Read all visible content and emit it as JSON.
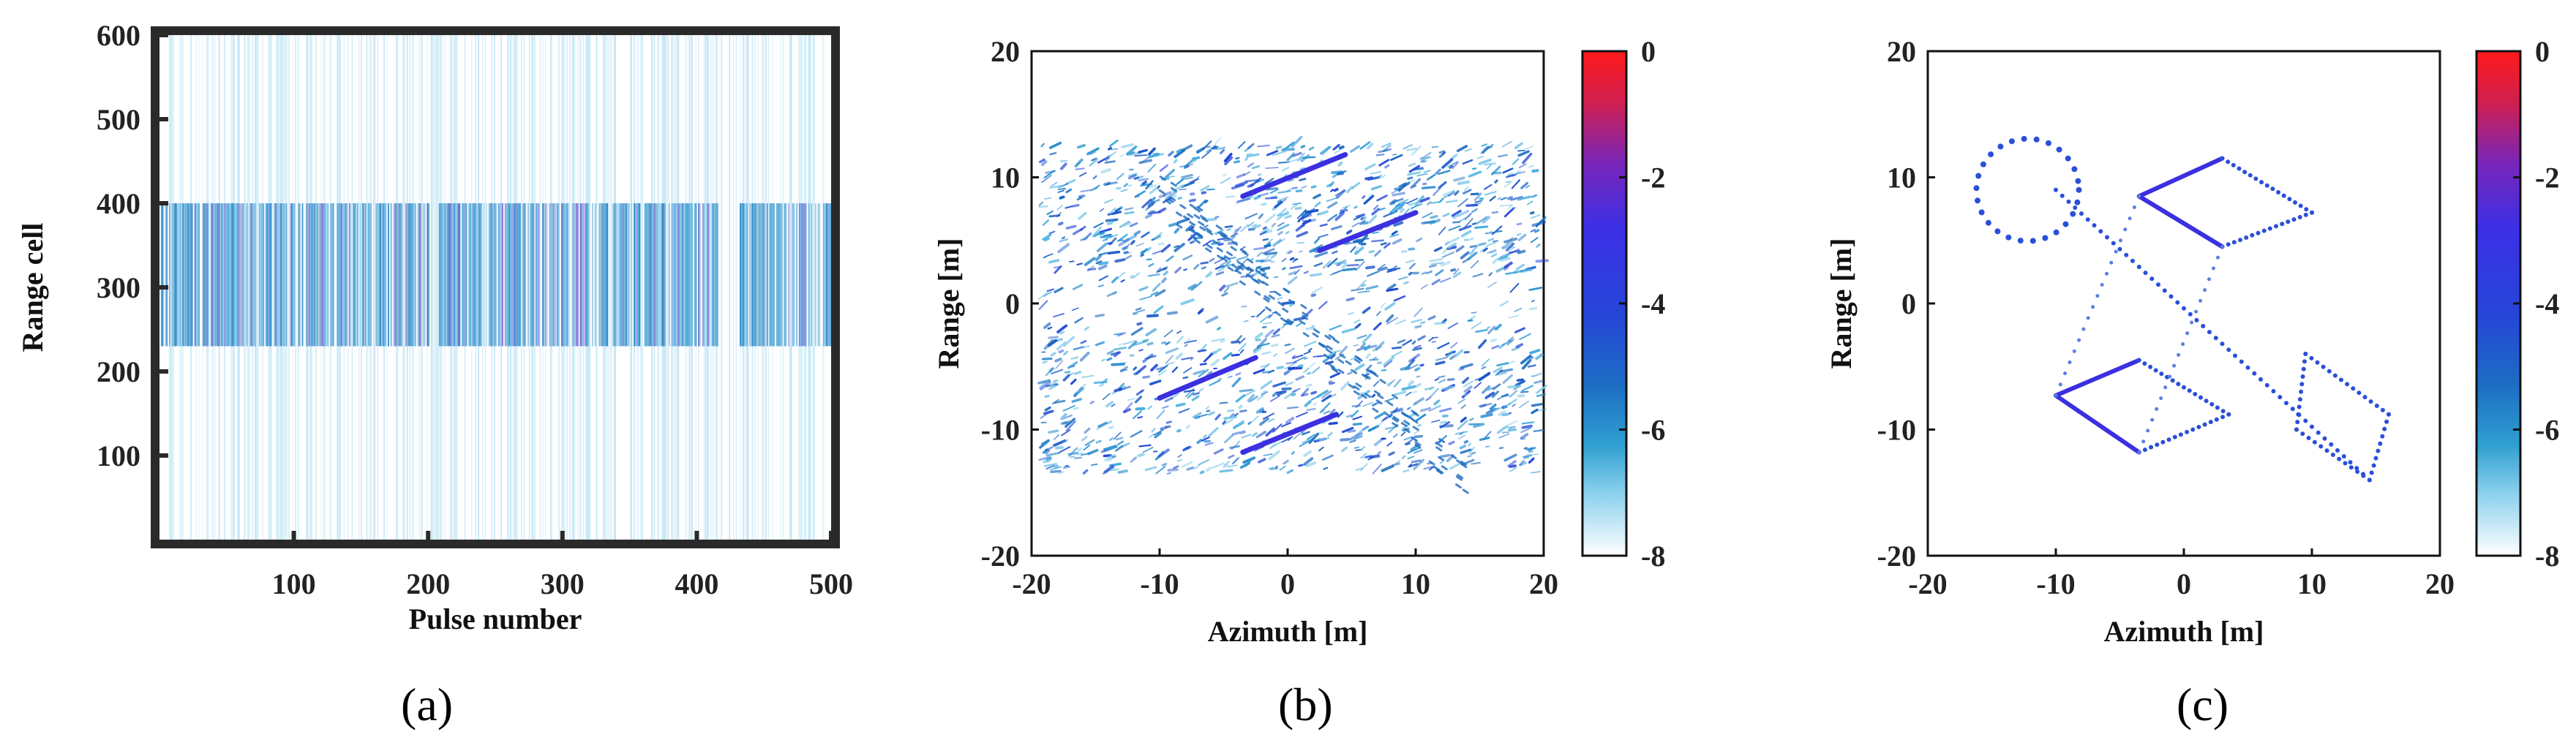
{
  "chart_data": [
    {
      "type": "heatmap",
      "panel_label": "(a)",
      "xlabel": "Pulse number",
      "ylabel": "Range cell",
      "xlim": [
        0,
        500
      ],
      "ylim": [
        0,
        600
      ],
      "xticks": [
        100,
        200,
        300,
        400,
        500
      ],
      "yticks": [
        100,
        200,
        300,
        400,
        500,
        600
      ],
      "xtick_labels": [
        "100",
        "200",
        "300",
        "400",
        "500"
      ],
      "ytick_labels": [
        "100",
        "200",
        "300",
        "400",
        "500",
        "600"
      ],
      "description_values": {
        "target_band_range_cells": [
          230,
          400
        ],
        "background": "sparse light-blue noise over all range cells"
      },
      "colors": {
        "noise": "#8fd0ec",
        "band_dark": "#1f7fc0",
        "band_mid": "#3aa0d8",
        "band_purple": "#6a5fd0"
      }
    },
    {
      "type": "heatmap",
      "panel_label": "(b)",
      "xlabel": "Azimuth [m]",
      "ylabel": "Range [m]",
      "xlim": [
        -20,
        20
      ],
      "ylim": [
        -20,
        20
      ],
      "xticks": [
        -20,
        -10,
        0,
        10,
        20
      ],
      "yticks": [
        -20,
        -10,
        0,
        10,
        20
      ],
      "xtick_labels": [
        "-20",
        "-10",
        "0",
        "10",
        "20"
      ],
      "ytick_labels": [
        "-20",
        "-10",
        "0",
        "10",
        "20"
      ],
      "colorbar": {
        "min": -8,
        "max": 0,
        "ticks": [
          "0",
          "-2",
          "-4",
          "-6",
          "-8"
        ]
      },
      "segments": [
        {
          "x": [
            -3.5,
            4.5
          ],
          "y": [
            8.5,
            11.8
          ]
        },
        {
          "x": [
            2.5,
            10.0
          ],
          "y": [
            4.2,
            7.2
          ]
        },
        {
          "x": [
            -10.0,
            -2.5
          ],
          "y": [
            -7.5,
            -4.3
          ]
        },
        {
          "x": [
            -3.5,
            3.8
          ],
          "y": [
            -11.8,
            -8.8
          ]
        }
      ]
    },
    {
      "type": "heatmap",
      "panel_label": "(c)",
      "xlabel": "Azimuth [m]",
      "ylabel": "Range [m]",
      "xlim": [
        -20,
        20
      ],
      "ylim": [
        -20,
        20
      ],
      "xticks": [
        -20,
        -10,
        0,
        10,
        20
      ],
      "yticks": [
        -20,
        -10,
        0,
        10,
        20
      ],
      "xtick_labels": [
        "-20",
        "-10",
        "0",
        "10",
        "20"
      ],
      "ytick_labels": [
        "-20",
        "-10",
        "0",
        "10",
        "20"
      ],
      "colorbar": {
        "min": -8,
        "max": 0,
        "ticks": [
          "0",
          "-2",
          "-4",
          "-6",
          "-8"
        ]
      },
      "polygons": [
        {
          "points": [
            [
              -3.5,
              8.5
            ],
            [
              3.0,
              11.5
            ],
            [
              10.0,
              7.2
            ],
            [
              3.0,
              4.5
            ]
          ]
        },
        {
          "points": [
            [
              -10.0,
              -7.3
            ],
            [
              -3.5,
              -4.5
            ],
            [
              3.5,
              -8.8
            ],
            [
              -3.5,
              -11.8
            ]
          ]
        }
      ],
      "diagonal": {
        "x": [
          -10.0,
          14.5
        ],
        "y": [
          9.0,
          -14.0
        ]
      },
      "circle": {
        "cx": -12.2,
        "cy": 9.0,
        "r": 4.0
      }
    }
  ]
}
